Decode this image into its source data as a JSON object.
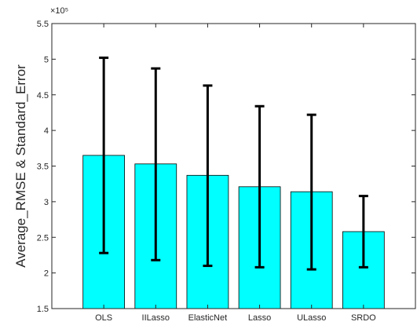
{
  "chart_data": {
    "type": "bar",
    "title": "",
    "xlabel": "",
    "ylabel": "Average_RMSE & Standard_Error",
    "y_exponent_label": "×10⁵",
    "y_scale_factor": 100000,
    "ylim": [
      1.5,
      5.5
    ],
    "yticks": [
      "1.5",
      "2",
      "2.5",
      "3",
      "3.5",
      "4",
      "4.5",
      "5",
      "5.5"
    ],
    "ytick_values": [
      1.5,
      2,
      2.5,
      3,
      3.5,
      4,
      4.5,
      5,
      5.5
    ],
    "categories": [
      "OLS",
      "IILasso",
      "ElasticNet",
      "Lasso",
      "ULasso",
      "SRDO"
    ],
    "values": [
      3.65,
      3.53,
      3.37,
      3.21,
      3.14,
      2.58
    ],
    "error_low": [
      2.28,
      2.18,
      2.1,
      2.08,
      2.05,
      2.08
    ],
    "error_high": [
      5.02,
      4.87,
      4.63,
      4.34,
      4.22,
      3.08
    ],
    "bar_color": "#00FFFF",
    "error_color": "#000000",
    "grid": false,
    "legend": "none"
  }
}
